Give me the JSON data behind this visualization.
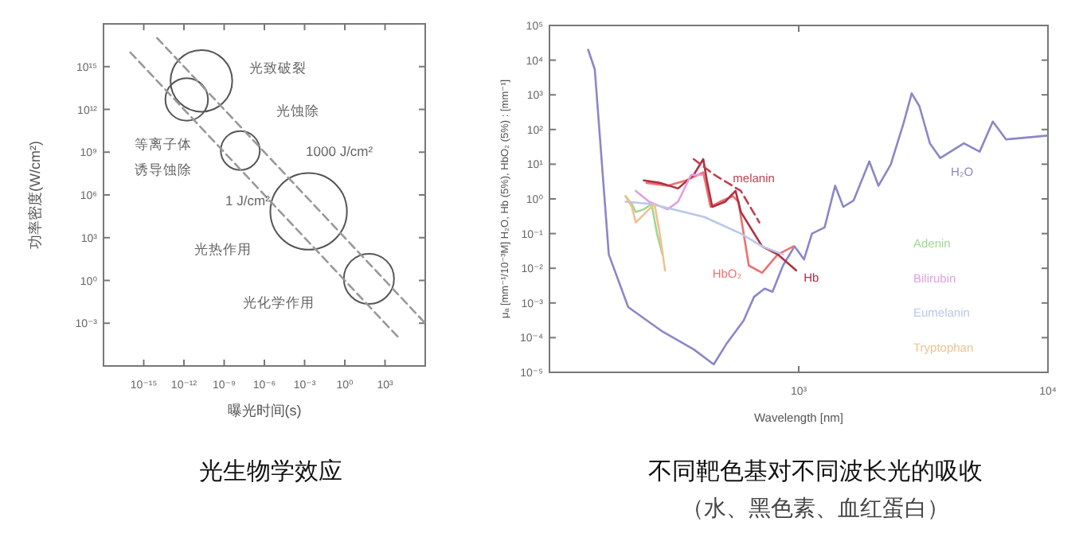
{
  "chart_data": [
    {
      "type": "bubble",
      "title": "光生物学效应",
      "xlabel": "曝光时间(s)",
      "ylabel": "功率密度(W/cm²)",
      "log": "xy",
      "xlim": [
        1e-18,
        1000000.0
      ],
      "ylim": [
        1e-06,
        1e+18
      ],
      "xticks": [
        {
          "value": 1e-15,
          "label": "10⁻¹⁵"
        },
        {
          "value": 1e-12,
          "label": "10⁻¹²"
        },
        {
          "value": 1e-09,
          "label": "10⁻⁹"
        },
        {
          "value": 1e-06,
          "label": "10⁻⁶"
        },
        {
          "value": 0.001,
          "label": "10⁻³"
        },
        {
          "value": 1,
          "label": "10⁰"
        },
        {
          "value": 1000.0,
          "label": "10³"
        }
      ],
      "yticks": [
        {
          "value": 0.001,
          "label": "10⁻³"
        },
        {
          "value": 1,
          "label": "10⁰"
        },
        {
          "value": 1000.0,
          "label": "10³"
        },
        {
          "value": 1000000.0,
          "label": "10⁶"
        },
        {
          "value": 1000000000.0,
          "label": "10⁹"
        },
        {
          "value": 1000000000000.0,
          "label": "10¹²"
        },
        {
          "value": 1000000000000000.0,
          "label": "10¹⁵"
        }
      ],
      "series": [
        {
          "color": "#555555",
          "x": [
            2e-11,
            1.6e-12,
            1.6e-08,
            0.002,
            63
          ],
          "values": [
            100000000000000.0,
            5000000000000.0,
            1300000000.0,
            70000.0,
            1.3
          ],
          "sizes": [
            0.65,
            0.31,
            0.26,
            1,
            0.43
          ]
        },
        {
          "type": "line",
          "color": "#999999",
          "line_style": "dashed",
          "x": [
            1e-16,
            10000.0
          ],
          "values": [
            1e+16,
            0.0001
          ]
        },
        {
          "type": "line",
          "color": "#999999",
          "line_style": "dashed",
          "x": [
            1e-14,
            1000000.0
          ],
          "values": [
            1e+17,
            0.001
          ]
        }
      ],
      "annotations": [
        "光致破裂",
        "光蚀除",
        "等离子体",
        "诱导蚀除",
        "1000 J/cm²",
        "1 J/cm²",
        "光热作用",
        "光化学作用"
      ]
    },
    {
      "type": "line",
      "title": "不同靶色基对不同波长光的吸收",
      "subtitle": "（水、黑色素、血红蛋白）",
      "xlabel": "Wavelength [nm]",
      "ylabel": "μₐ [mm⁻¹/10⁻³M]      H₂O, Hb (5%), HbO₂ (5%) : [mm⁻¹]",
      "log": "xy",
      "legend": "right",
      "xlim": [
        100,
        10000
      ],
      "ylim": [
        1e-05,
        100000.0
      ],
      "xticks": [
        {
          "value": 1000,
          "label": "10³"
        },
        {
          "value": 10000,
          "label": "10⁴"
        }
      ],
      "yticks": [
        {
          "value": 1e-05,
          "label": "10⁻⁵"
        },
        {
          "value": 0.0001,
          "label": "10⁻⁴"
        },
        {
          "value": 0.001,
          "label": "10⁻³"
        },
        {
          "value": 0.01,
          "label": "10⁻²"
        },
        {
          "value": 0.1,
          "label": "10⁻¹"
        },
        {
          "value": 1,
          "label": "10⁰"
        },
        {
          "value": 10,
          "label": "10¹"
        },
        {
          "value": 100,
          "label": "10²"
        },
        {
          "value": 1000,
          "label": "10³"
        },
        {
          "value": 10000,
          "label": "10⁴"
        },
        {
          "value": 100000,
          "label": "10⁵"
        }
      ],
      "series": [
        {
          "name": "H₂O",
          "color": "#8a87c8",
          "x": [
            143,
            152,
            173,
            207,
            284,
            379,
            456,
            512,
            601,
            662,
            730,
            785,
            865,
            962,
            1050,
            1130,
            1270,
            1400,
            1510,
            1660,
            1920,
            2090,
            2340,
            2640,
            2840,
            3050,
            3360,
            3700,
            4600,
            5320,
            6010,
            6790,
            10000
          ],
          "values": [
            20000,
            5400,
            0.025,
            0.00076,
            0.00015,
            4.6e-05,
            1.7e-05,
            6.5e-05,
            0.00031,
            0.0015,
            0.0026,
            0.0021,
            0.012,
            0.043,
            0.018,
            0.1,
            0.15,
            2.4,
            0.59,
            0.9,
            12,
            2.4,
            9.8,
            160,
            1100,
            470,
            40,
            15,
            40,
            23,
            170,
            52,
            67
          ]
        },
        {
          "name": "HbO₂",
          "color": "#f07070",
          "x": [
            245,
            298,
            353,
            414,
            443,
            483,
            545,
            573,
            631,
            713,
            824,
            953
          ],
          "values": [
            2.9,
            2.4,
            3.4,
            5.8,
            0.59,
            0.83,
            1.2,
            0.83,
            0.012,
            0.0074,
            0.025,
            0.043
          ]
        },
        {
          "name": "Hb",
          "color": "#b03040",
          "x": [
            239,
            277,
            328,
            379,
            414,
            428,
            450,
            507,
            558,
            586,
            713,
            824,
            976
          ],
          "values": [
            3.4,
            2.9,
            2.0,
            4.9,
            14,
            3.4,
            0.59,
            0.83,
            1.7,
            0.42,
            0.043,
            0.025,
            0.0087
          ]
        },
        {
          "name": "melanin",
          "color": "#c04050",
          "line_style": "dashed",
          "x": [
            379,
            460,
            586,
            695
          ],
          "values": [
            14,
            4.9,
            1.7,
            0.21
          ]
        },
        {
          "name": "Adenin",
          "color": "#a0d890",
          "x": [
            202,
            214,
            222,
            239,
            257,
            270,
            284
          ],
          "values": [
            1.2,
            0.71,
            0.42,
            0.5,
            0.71,
            0.1,
            0.025
          ]
        },
        {
          "name": "Bilirubin",
          "color": "#e0a0e0",
          "x": [
            222,
            251,
            298,
            328,
            370,
            408
          ],
          "values": [
            1.7,
            0.83,
            0.5,
            0.83,
            4.9,
            4.9
          ]
        },
        {
          "name": "Eumelanin",
          "color": "#b8c8e8",
          "x": [
            202,
            257,
            418,
            586,
            713,
            865
          ],
          "values": [
            0.83,
            0.71,
            0.3,
            0.1,
            0.043,
            0.025
          ]
        },
        {
          "name": "Tryptophan",
          "color": "#f0c090",
          "x": [
            202,
            214,
            222,
            251,
            264,
            277,
            291
          ],
          "values": [
            1.2,
            0.59,
            0.21,
            0.5,
            0.71,
            0.1,
            0.0087
          ]
        }
      ]
    }
  ]
}
